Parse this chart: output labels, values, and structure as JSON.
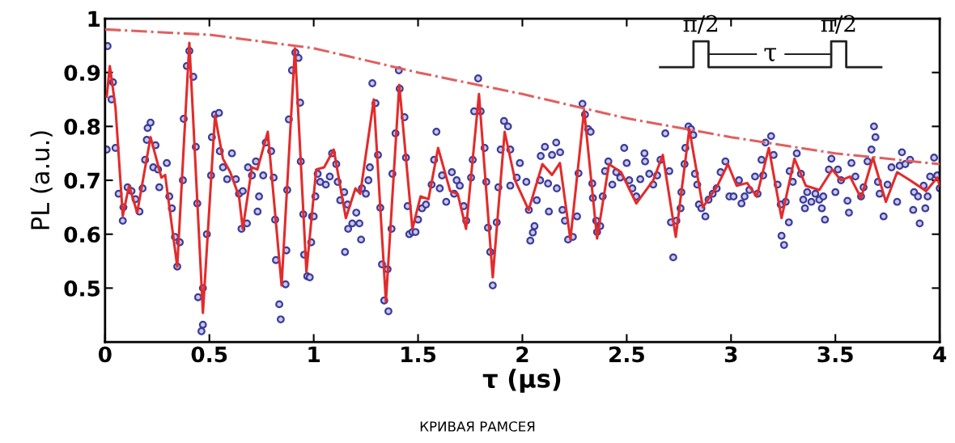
{
  "chart_data": {
    "type": "scatter",
    "xlabel": "τ (μs)",
    "ylabel": "PL (a.u.)",
    "xlim": [
      0,
      4
    ],
    "ylim": [
      0.4,
      1.0
    ],
    "xticks": [
      0,
      0.5,
      1,
      1.5,
      2,
      2.5,
      3,
      3.5,
      4
    ],
    "yticks": [
      0.5,
      0.6,
      0.7,
      0.8,
      0.9,
      1
    ],
    "grid": false,
    "legend": false,
    "annotations": [
      "π/2",
      "π/2",
      "τ",
      "КРИВАЯ РАМСЕЯ"
    ],
    "series": [
      {
        "marker": "circle",
        "color": "#3b3b9c",
        "x": [
          0.012,
          0.008,
          0.038,
          0.031,
          0.05,
          0.065,
          0.085,
          0.088,
          0.108,
          0.127,
          0.146,
          0.165,
          0.18,
          0.192,
          0.2,
          0.204,
          0.218,
          0.242,
          0.231,
          0.254,
          0.26,
          0.296,
          0.308,
          0.32,
          0.335,
          0.346,
          0.358,
          0.373,
          0.377,
          0.392,
          0.404,
          0.423,
          0.435,
          0.442,
          0.446,
          0.469,
          0.469,
          0.462,
          0.488,
          0.508,
          0.512,
          0.527,
          0.546,
          0.55,
          0.565,
          0.585,
          0.608,
          0.627,
          0.642,
          0.66,
          0.654,
          0.68,
          0.685,
          0.704,
          0.723,
          0.738,
          0.731,
          0.758,
          0.77,
          0.796,
          0.808,
          0.815,
          0.819,
          0.835,
          0.842,
          0.865,
          0.869,
          0.873,
          0.881,
          0.896,
          0.912,
          0.927,
          0.935,
          0.938,
          0.95,
          0.954,
          0.969,
          0.981,
          0.988,
          0.992,
          1.0,
          1.008,
          1.019,
          1.031,
          1.058,
          1.077,
          1.088,
          1.108,
          1.115,
          1.127,
          1.146,
          1.15,
          1.162,
          1.165,
          1.185,
          1.204,
          1.219,
          1.227,
          1.231,
          1.25,
          1.262,
          1.269,
          1.281,
          1.296,
          1.308,
          1.319,
          1.327,
          1.338,
          1.358,
          1.354,
          1.373,
          1.377,
          1.392,
          1.408,
          1.412,
          1.435,
          1.442,
          1.45,
          1.458,
          1.473,
          1.488,
          1.5,
          1.519,
          1.538,
          1.565,
          1.577,
          1.588,
          1.604,
          1.615,
          1.635,
          1.662,
          1.673,
          1.685,
          1.7,
          1.719,
          1.731,
          1.754,
          1.762,
          1.769,
          1.788,
          1.8,
          1.819,
          1.827,
          1.835,
          1.846,
          1.858,
          1.877,
          1.885,
          1.896,
          1.912,
          1.931,
          1.942,
          1.942,
          1.973,
          1.988,
          2.019,
          2.031,
          2.038,
          2.05,
          2.058,
          2.069,
          2.085,
          2.088,
          2.108,
          2.123,
          2.127,
          2.142,
          2.162,
          2.165,
          2.181,
          2.192,
          2.204,
          2.219,
          2.242,
          2.262,
          2.269,
          2.288,
          2.3,
          2.315,
          2.327,
          2.335,
          2.338,
          2.354,
          2.358,
          2.373,
          2.385,
          2.396,
          2.412,
          2.431,
          2.45,
          2.469,
          2.488,
          2.5,
          2.512,
          2.527,
          2.546,
          2.565,
          2.585,
          2.588,
          2.608,
          2.627,
          2.646,
          2.662,
          2.685,
          2.704,
          2.712,
          2.723,
          2.738,
          2.758,
          2.762,
          2.777,
          2.781,
          2.796,
          2.808,
          2.819,
          2.827,
          2.838,
          2.846,
          2.858,
          2.877,
          2.892,
          2.912,
          2.931,
          2.95,
          2.973,
          2.992,
          3.012,
          3.038,
          3.05,
          3.065,
          3.088,
          3.115,
          3.127,
          3.146,
          3.154,
          3.165,
          3.192,
          3.204,
          3.223,
          3.238,
          3.242,
          3.254,
          3.262,
          3.277,
          3.281,
          3.296,
          3.315,
          3.335,
          3.346,
          3.354,
          3.365,
          3.385,
          3.404,
          3.423,
          3.435,
          3.45,
          3.442,
          3.469,
          3.481,
          3.5,
          3.512,
          3.527,
          3.558,
          3.565,
          3.577,
          3.596,
          3.623,
          3.635,
          3.654,
          3.673,
          3.692,
          3.685,
          3.704,
          3.712,
          3.731,
          3.75,
          3.769,
          3.796,
          3.808,
          3.819,
          3.835,
          3.858,
          3.873,
          3.877,
          3.896,
          3.904,
          3.923,
          3.931,
          3.942,
          3.954,
          3.973,
          3.988,
          4.0
        ],
        "values": [
          0.949,
          0.757,
          0.882,
          0.85,
          0.76,
          0.675,
          0.625,
          0.65,
          0.687,
          0.68,
          0.665,
          0.642,
          0.685,
          0.738,
          0.775,
          0.797,
          0.807,
          0.765,
          0.724,
          0.72,
          0.687,
          0.732,
          0.67,
          0.648,
          0.595,
          0.54,
          0.585,
          0.7,
          0.814,
          0.912,
          0.94,
          0.892,
          0.762,
          0.657,
          0.483,
          0.5,
          0.432,
          0.42,
          0.6,
          0.709,
          0.78,
          0.822,
          0.825,
          0.754,
          0.724,
          0.702,
          0.75,
          0.702,
          0.675,
          0.68,
          0.61,
          0.62,
          0.724,
          0.709,
          0.735,
          0.67,
          0.642,
          0.709,
          0.77,
          0.754,
          0.705,
          0.627,
          0.552,
          0.47,
          0.442,
          0.507,
          0.57,
          0.682,
          0.813,
          0.904,
          0.937,
          0.927,
          0.844,
          0.735,
          0.637,
          0.562,
          0.522,
          0.52,
          0.585,
          0.633,
          0.633,
          0.67,
          0.712,
          0.697,
          0.692,
          0.707,
          0.75,
          0.73,
          0.697,
          0.663,
          0.678,
          0.567,
          0.655,
          0.61,
          0.62,
          0.64,
          0.62,
          0.59,
          0.685,
          0.675,
          0.7,
          0.724,
          0.88,
          0.843,
          0.747,
          0.649,
          0.544,
          0.477,
          0.457,
          0.535,
          0.61,
          0.712,
          0.787,
          0.904,
          0.87,
          0.817,
          0.742,
          0.652,
          0.6,
          0.604,
          0.604,
          0.627,
          0.648,
          0.655,
          0.692,
          0.738,
          0.79,
          0.685,
          0.709,
          0.66,
          0.715,
          0.675,
          0.7,
          0.69,
          0.652,
          0.625,
          0.705,
          0.738,
          0.828,
          0.889,
          0.828,
          0.76,
          0.697,
          0.612,
          0.567,
          0.505,
          0.622,
          0.687,
          0.757,
          0.81,
          0.8,
          0.757,
          0.69,
          0.705,
          0.732,
          0.697,
          0.645,
          0.588,
          0.603,
          0.615,
          0.663,
          0.7,
          0.745,
          0.762,
          0.694,
          0.642,
          0.747,
          0.77,
          0.685,
          0.752,
          0.645,
          0.625,
          0.59,
          0.595,
          0.633,
          0.713,
          0.842,
          0.822,
          0.795,
          0.79,
          0.694,
          0.667,
          0.625,
          0.604,
          0.615,
          0.67,
          0.717,
          0.735,
          0.692,
          0.715,
          0.705,
          0.76,
          0.732,
          0.7,
          0.685,
          0.67,
          0.702,
          0.75,
          0.735,
          0.712,
          0.692,
          0.709,
          0.738,
          0.787,
          0.717,
          0.622,
          0.557,
          0.625,
          0.648,
          0.678,
          0.73,
          0.76,
          0.8,
          0.795,
          0.784,
          0.712,
          0.692,
          0.655,
          0.648,
          0.633,
          0.664,
          0.675,
          0.685,
          0.715,
          0.735,
          0.67,
          0.67,
          0.7,
          0.657,
          0.67,
          0.682,
          0.707,
          0.675,
          0.738,
          0.709,
          0.77,
          0.782,
          0.747,
          0.692,
          0.655,
          0.597,
          0.58,
          0.66,
          0.622,
          0.717,
          0.697,
          0.75,
          0.712,
          0.664,
          0.648,
          0.678,
          0.66,
          0.675,
          0.664,
          0.648,
          0.627,
          0.67,
          0.72,
          0.74,
          0.678,
          0.72,
          0.7,
          0.662,
          0.64,
          0.732,
          0.707,
          0.67,
          0.687,
          0.735,
          0.757,
          0.78,
          0.8,
          0.697,
          0.675,
          0.633,
          0.692,
          0.724,
          0.66,
          0.727,
          0.752,
          0.73,
          0.738,
          0.645,
          0.678,
          0.67,
          0.62,
          0.69,
          0.648,
          0.67,
          0.707,
          0.742,
          0.709,
          0.685
        ]
      },
      {
        "type": "line",
        "line_style": "solid",
        "color": "#e32b2b",
        "x": [
          0.008,
          0.023,
          0.05,
          0.085,
          0.115,
          0.154,
          0.218,
          0.27,
          0.288,
          0.346,
          0.404,
          0.469,
          0.527,
          0.565,
          0.6,
          0.642,
          0.66,
          0.704,
          0.73,
          0.78,
          0.846,
          0.91,
          0.965,
          1.012,
          1.05,
          1.096,
          1.154,
          1.2,
          1.223,
          1.288,
          1.346,
          1.41,
          1.473,
          1.512,
          1.55,
          1.596,
          1.654,
          1.69,
          1.73,
          1.792,
          1.858,
          1.915,
          1.965,
          2.03,
          2.096,
          2.142,
          2.18,
          2.23,
          2.296,
          2.358,
          2.415,
          2.473,
          2.546,
          2.627,
          2.673,
          2.735,
          2.8,
          2.865,
          2.935,
          2.985,
          3.027,
          3.077,
          3.123,
          3.181,
          3.242,
          3.304,
          3.358,
          3.423,
          3.485,
          3.527,
          3.57,
          3.623,
          3.68,
          3.742,
          3.796,
          3.858,
          3.935,
          3.988,
          4.0
        ],
        "values": [
          0.855,
          0.912,
          0.835,
          0.634,
          0.69,
          0.64,
          0.78,
          0.705,
          0.71,
          0.54,
          0.955,
          0.454,
          0.82,
          0.74,
          0.715,
          0.67,
          0.61,
          0.724,
          0.72,
          0.79,
          0.505,
          0.945,
          0.53,
          0.72,
          0.724,
          0.757,
          0.63,
          0.685,
          0.675,
          0.85,
          0.475,
          0.877,
          0.61,
          0.67,
          0.665,
          0.76,
          0.68,
          0.675,
          0.61,
          0.86,
          0.52,
          0.79,
          0.7,
          0.645,
          0.73,
          0.71,
          0.732,
          0.59,
          0.83,
          0.592,
          0.73,
          0.715,
          0.657,
          0.7,
          0.747,
          0.595,
          0.795,
          0.65,
          0.69,
          0.73,
          0.69,
          0.695,
          0.67,
          0.76,
          0.63,
          0.74,
          0.69,
          0.682,
          0.72,
          0.7,
          0.707,
          0.667,
          0.742,
          0.66,
          0.715,
          0.7,
          0.68,
          0.705,
          0.69
        ]
      },
      {
        "type": "line",
        "line_style": "dashed",
        "color": "#e06060",
        "x": [
          0,
          0.5,
          1.0,
          1.5,
          2.0,
          2.5,
          3.0,
          3.5,
          4.0
        ],
        "values": [
          0.98,
          0.97,
          0.945,
          0.9,
          0.86,
          0.815,
          0.78,
          0.75,
          0.73
        ]
      }
    ]
  }
}
